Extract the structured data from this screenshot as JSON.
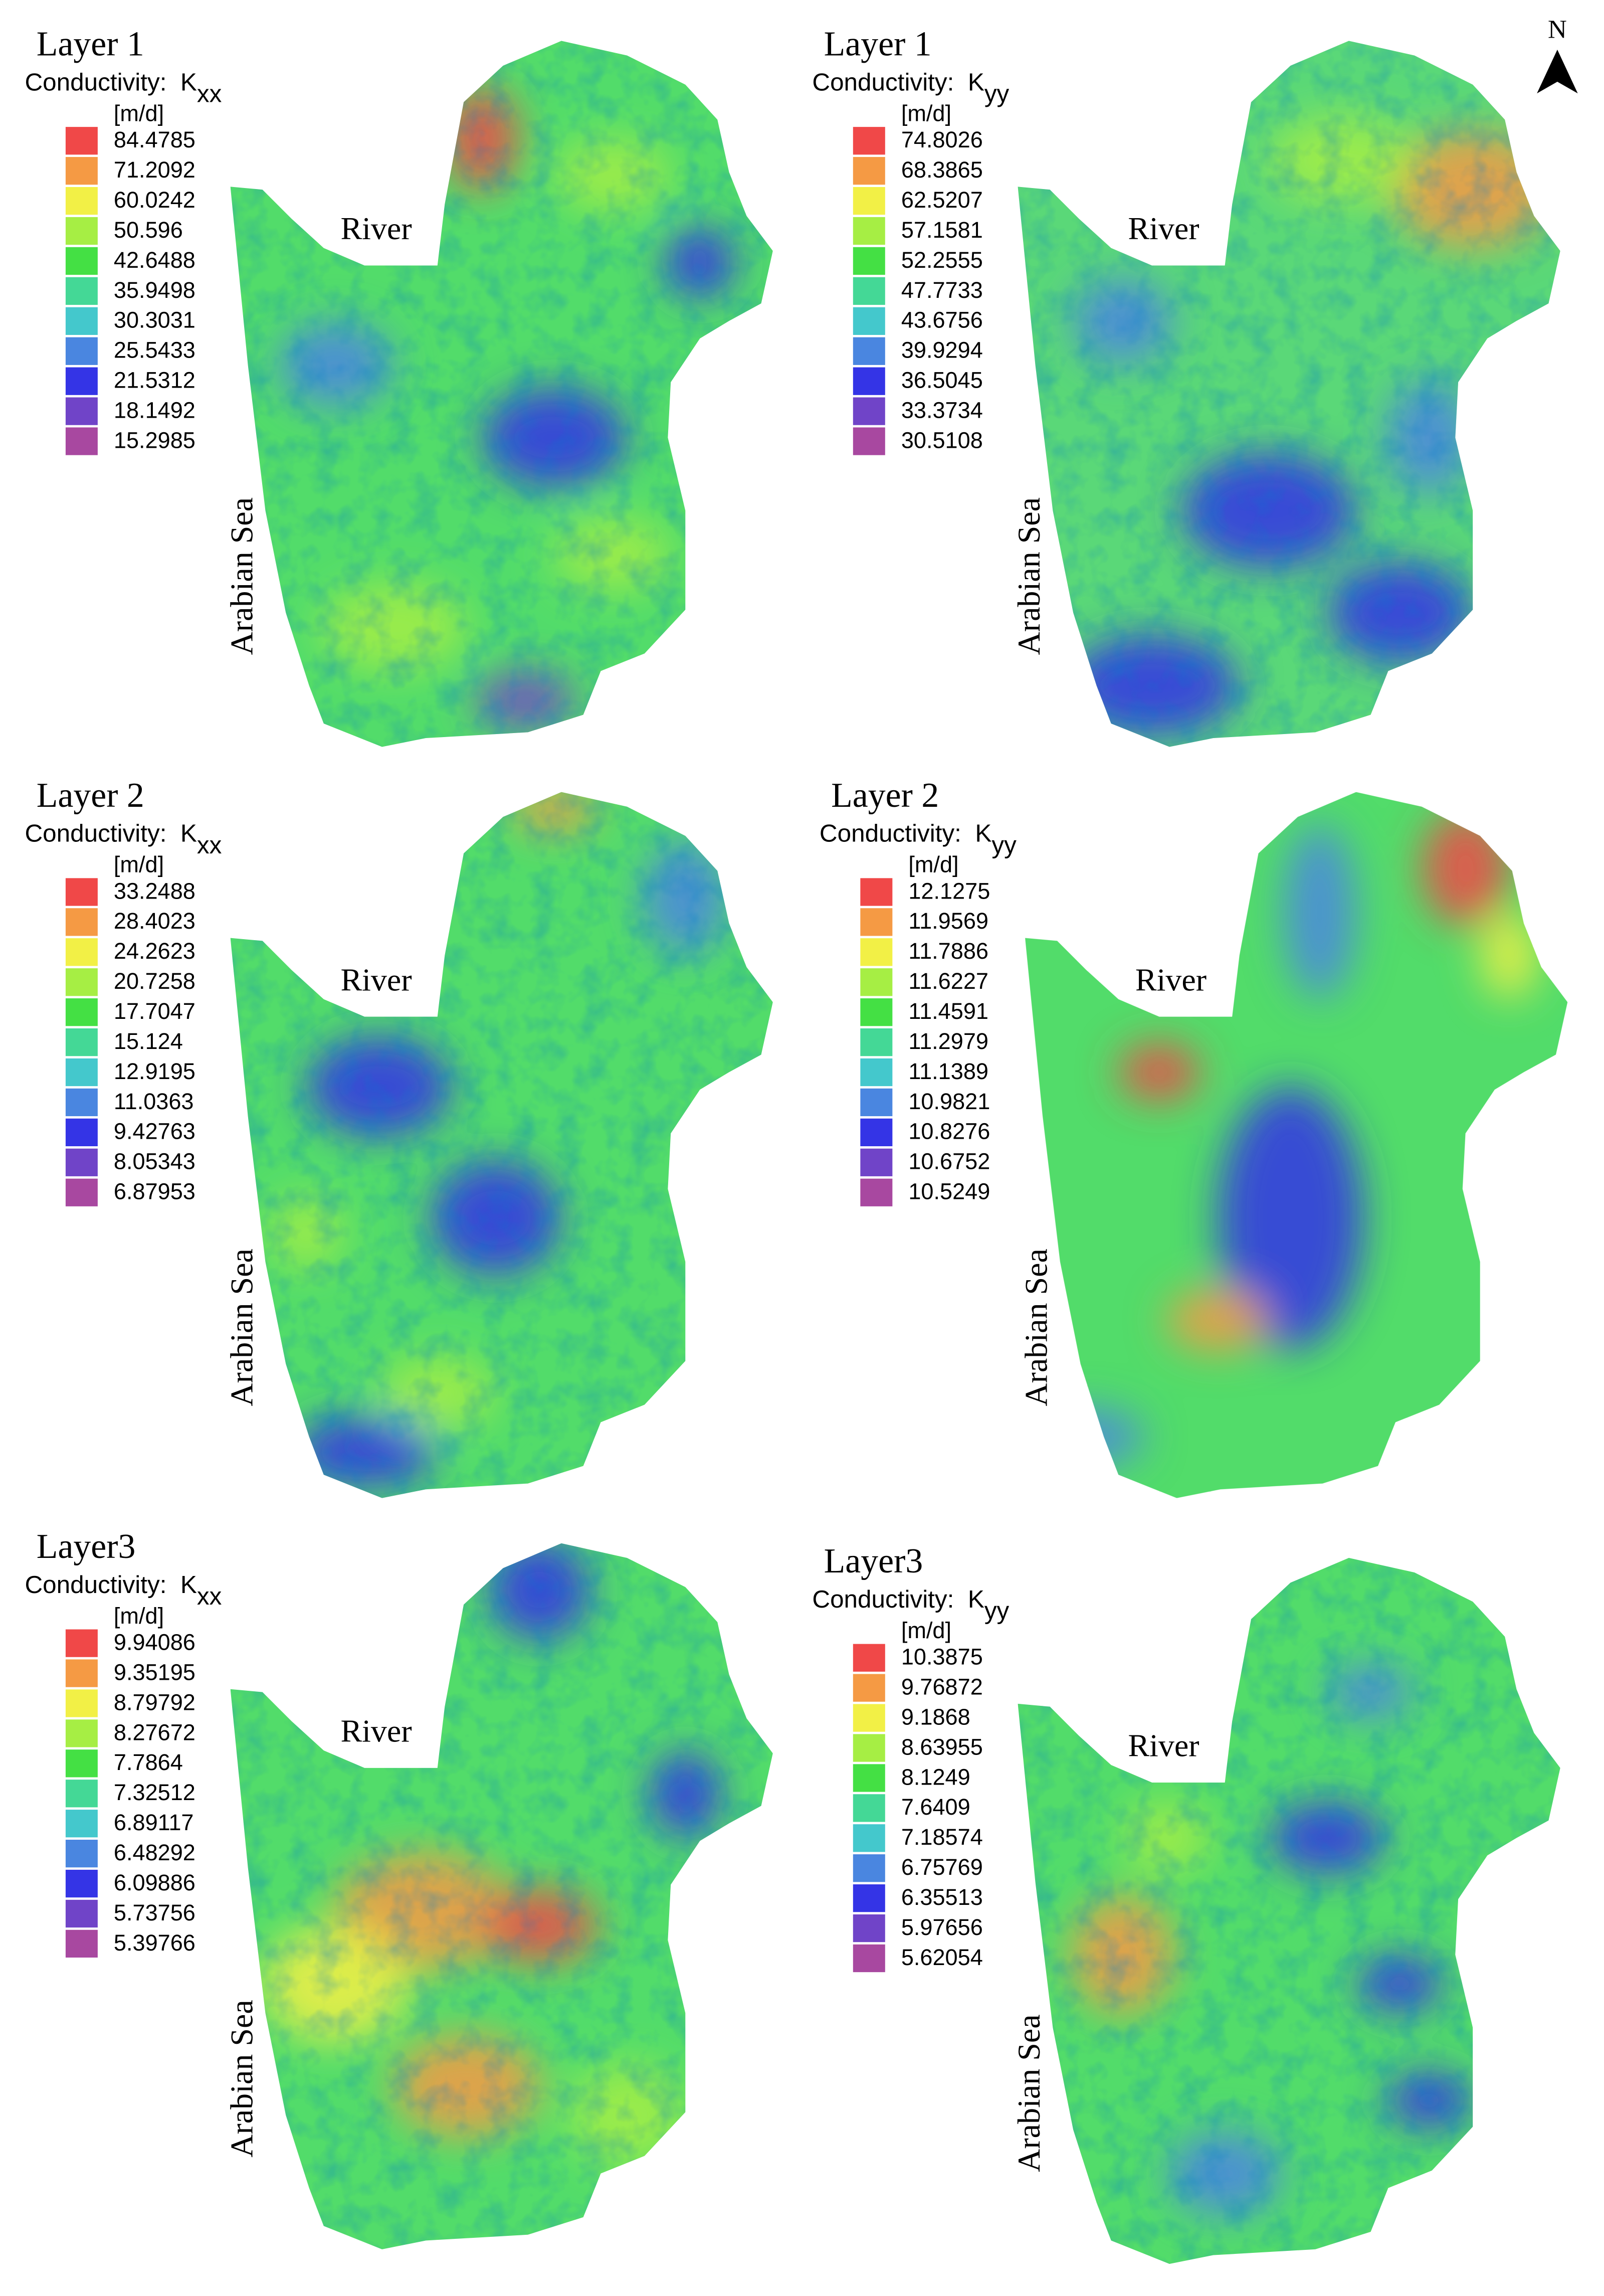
{
  "north_label": "N",
  "legend_colors": [
    "#f04848",
    "#f59a44",
    "#f2f046",
    "#a6ee44",
    "#44e044",
    "#44d896",
    "#44c8cc",
    "#4a86e0",
    "#3434e6",
    "#7044c8",
    "#a848a0"
  ],
  "panels": [
    {
      "title": "Layer 1",
      "subtitle": "Conductivity:  K",
      "subscript": "xx",
      "unit": "[m/d]",
      "legend": [
        "84.4785",
        "71.2092",
        "60.0242",
        "50.596",
        "42.6488",
        "35.9498",
        "30.3031",
        "25.5433",
        "21.5312",
        "18.1492",
        "15.2985"
      ],
      "river_label": "River",
      "sea_label": "Arabian Sea"
    },
    {
      "title": "Layer 1",
      "subtitle": "Conductivity:  K",
      "subscript": "yy",
      "unit": "[m/d]",
      "legend": [
        "74.8026",
        "68.3865",
        "62.5207",
        "57.1581",
        "52.2555",
        "47.7733",
        "43.6756",
        "39.9294",
        "36.5045",
        "33.3734",
        "30.5108"
      ],
      "river_label": "River",
      "sea_label": "Arabian Sea"
    },
    {
      "title": "Layer 2",
      "subtitle": "Conductivity:  K",
      "subscript": "xx",
      "unit": "[m/d]",
      "legend": [
        "33.2488",
        "28.4023",
        "24.2623",
        "20.7258",
        "17.7047",
        "15.124",
        "12.9195",
        "11.0363",
        "9.42763",
        "8.05343",
        "6.87953"
      ],
      "river_label": "River",
      "sea_label": "Arabian Sea"
    },
    {
      "title": "Layer 2",
      "subtitle": "Conductivity:  K",
      "subscript": "yy",
      "unit": "[m/d]",
      "legend": [
        "12.1275",
        "11.9569",
        "11.7886",
        "11.6227",
        "11.4591",
        "11.2979",
        "11.1389",
        "10.9821",
        "10.8276",
        "10.6752",
        "10.5249"
      ],
      "river_label": "River",
      "sea_label": "Arabian Sea"
    },
    {
      "title": "Layer3",
      "subtitle": "Conductivity:  K",
      "subscript": "xx",
      "unit": "[m/d]",
      "legend": [
        "9.94086",
        "9.35195",
        "8.79792",
        "8.27672",
        "7.7864",
        "7.32512",
        "6.89117",
        "6.48292",
        "6.09886",
        "5.73756",
        "5.39766"
      ],
      "river_label": "River",
      "sea_label": "Arabian Sea"
    },
    {
      "title": "Layer3",
      "subtitle": "Conductivity:  K",
      "subscript": "yy",
      "unit": "[m/d]",
      "legend": [
        "10.3875",
        "9.76872",
        "9.1868",
        "8.63955",
        "8.1249",
        "7.6409",
        "7.18574",
        "6.75769",
        "6.35513",
        "5.97656",
        "5.62054"
      ],
      "river_label": "River",
      "sea_label": "Arabian Sea"
    }
  ]
}
